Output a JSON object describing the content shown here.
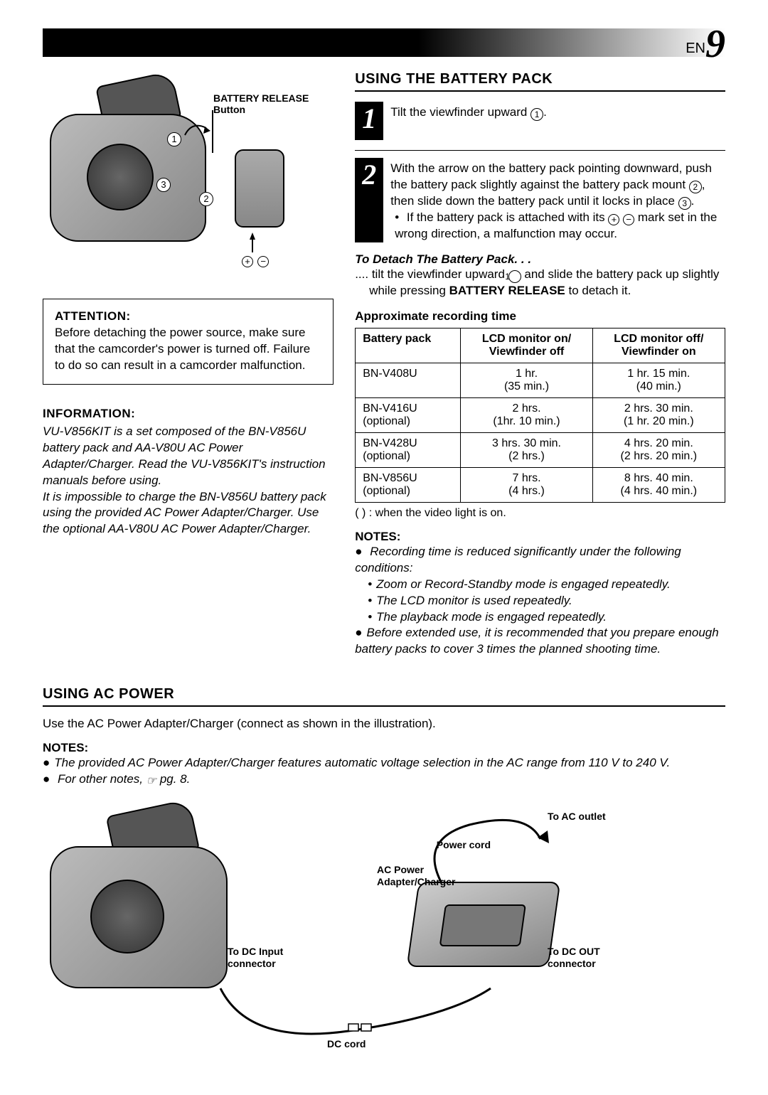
{
  "page": {
    "lang": "EN",
    "number": "9"
  },
  "diagram1": {
    "release_label": "BATTERY RELEASE Button",
    "circ1": "1",
    "circ2": "2",
    "circ3": "3"
  },
  "attention": {
    "label": "ATTENTION:",
    "text": "Before detaching the power source, make sure that the camcorder's power is turned off. Failure to do so can result in a camcorder malfunction."
  },
  "information": {
    "label": "INFORMATION:",
    "p1": "VU-V856KIT is a set composed of the BN-V856U battery pack and AA-V80U AC Power Adapter/Charger. Read the VU-V856KIT's instruction manuals before using.",
    "p2": "It is impossible to charge the BN-V856U battery pack using the provided AC Power Adapter/Charger. Use the optional AA-V80U AC Power Adapter/Charger."
  },
  "battery": {
    "title": "USING THE BATTERY PACK",
    "step1": "Tilt the viewfinder upward",
    "step2a": "With the arrow on the battery pack pointing downward, push the battery pack slightly against the battery pack mount",
    "step2b": ", then slide down the battery pack until it locks in place",
    "step2_bullet": "If the battery pack is attached with its ",
    "step2_bullet_tail": " mark set in the wrong direction, a malfunction may occur.",
    "detach_title": "To Detach The Battery Pack. . .",
    "detach_text_a": ".... tilt the viewfinder upward ",
    "detach_text_b": " and slide the battery pack up slightly while pressing ",
    "detach_bold": "BATTERY RELEASE",
    "detach_text_c": " to detach it.",
    "approx_title": "Approximate recording time",
    "table": {
      "columns": [
        "Battery pack",
        "LCD monitor on/\nViewfinder off",
        "LCD monitor off/\nViewfinder on"
      ],
      "rows": [
        {
          "pack": "BN-V408U",
          "opt": "",
          "on_main": "1 hr.",
          "on_sub": "(35 min.)",
          "off_main": "1 hr. 15 min.",
          "off_sub": "(40 min.)"
        },
        {
          "pack": "BN-V416U",
          "opt": "(optional)",
          "on_main": "2 hrs.",
          "on_sub": "(1hr. 10 min.)",
          "off_main": "2 hrs. 30 min.",
          "off_sub": "(1 hr. 20 min.)"
        },
        {
          "pack": "BN-V428U",
          "opt": "(optional)",
          "on_main": "3 hrs. 30 min.",
          "on_sub": "(2 hrs.)",
          "off_main": "4 hrs. 20 min.",
          "off_sub": "(2 hrs. 20 min.)"
        },
        {
          "pack": "BN-V856U",
          "opt": "(optional)",
          "on_main": "7 hrs.",
          "on_sub": "(4 hrs.)",
          "off_main": "8 hrs. 40 min.",
          "off_sub": "(4 hrs. 40 min.)"
        }
      ],
      "footnote": "(    ) : when the video light is on."
    },
    "notes_label": "NOTES:",
    "notes": {
      "n1": "Recording time is reduced significantly under the following conditions:",
      "n1a": "Zoom or Record-Standby mode is engaged repeatedly.",
      "n1b": "The LCD monitor is used repeatedly.",
      "n1c": "The playback mode is engaged repeatedly.",
      "n2": "Before extended use, it is recommended that you prepare enough battery packs to cover 3 times the planned shooting time."
    }
  },
  "ac": {
    "title": "USING AC POWER",
    "desc": "Use the AC Power Adapter/Charger (connect as shown in the illustration).",
    "notes_label": "NOTES:",
    "n1": "The provided AC Power Adapter/Charger features automatic voltage selection in the AC range from 110 V to 240 V.",
    "n2_a": "For other notes, ",
    "n2_b": " pg. 8.",
    "labels": {
      "to_ac_outlet": "To AC outlet",
      "power_cord": "Power cord",
      "adapter": "AC Power\nAdapter/Charger",
      "to_dc_input": "To DC Input\nconnector",
      "to_dc_out": "To DC OUT\nconnector",
      "dc_cord": "DC cord"
    }
  }
}
